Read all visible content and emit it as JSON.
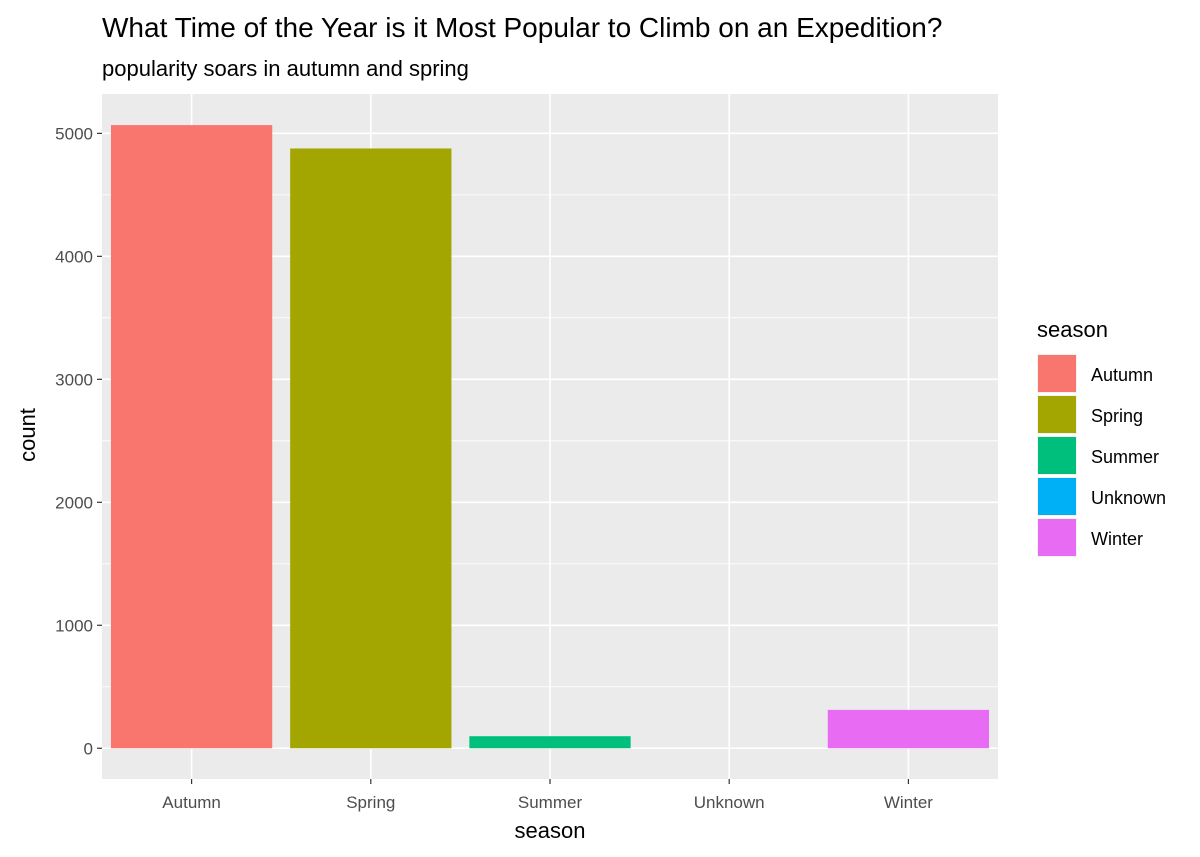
{
  "chart_data": {
    "type": "bar",
    "title": "What Time of the Year is it Most Popular to Climb on an Expedition?",
    "subtitle": "popularity soars in autumn and spring",
    "xlabel": "season",
    "ylabel": "count",
    "categories": [
      "Autumn",
      "Spring",
      "Summer",
      "Unknown",
      "Winter"
    ],
    "values": [
      5067,
      4877,
      98,
      0,
      312
    ],
    "colors": [
      "#F8766D",
      "#A3A500",
      "#00BF7D",
      "#00B0F6",
      "#E76BF3"
    ],
    "ylim": [
      -250,
      5320
    ],
    "yticks": [
      0,
      1000,
      2000,
      3000,
      4000,
      5000
    ],
    "ytick_labels": [
      "0",
      "1000",
      "2000",
      "3000",
      "4000",
      "5000"
    ],
    "grid": true,
    "panel_background": "#EBEBEB",
    "grid_color": "#FFFFFF",
    "legend": {
      "title": "season",
      "placement": "right",
      "entries": [
        "Autumn",
        "Spring",
        "Summer",
        "Unknown",
        "Winter"
      ]
    }
  }
}
